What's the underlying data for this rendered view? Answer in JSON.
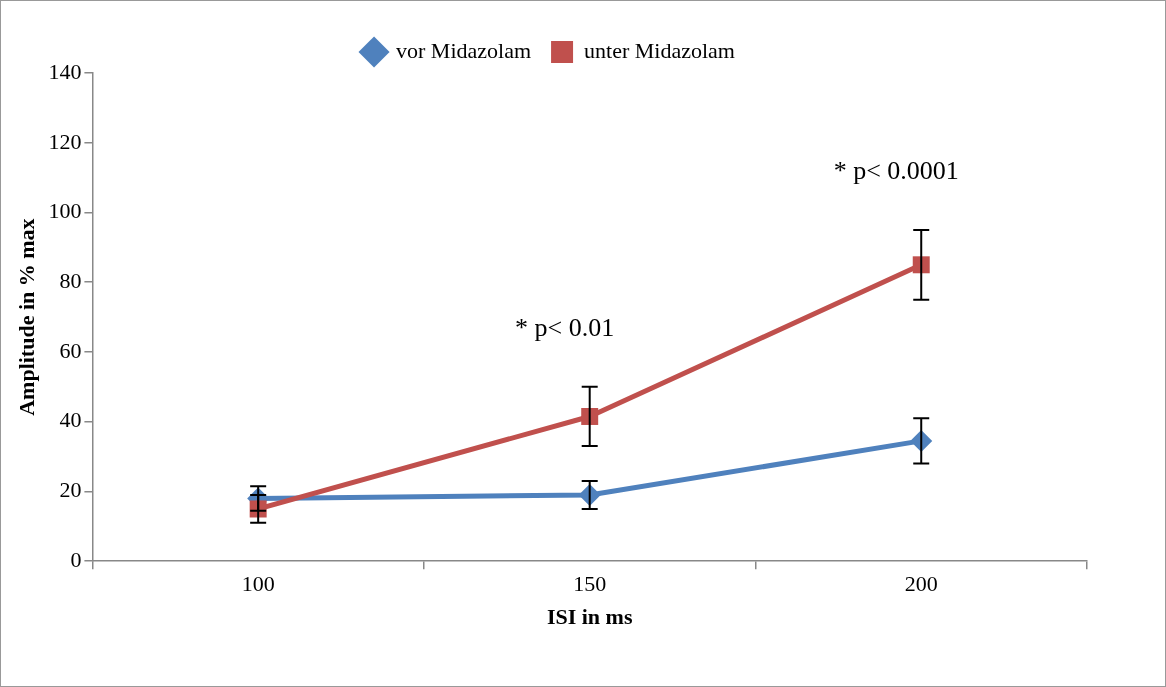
{
  "chart_data": {
    "type": "line",
    "xlabel": "ISI in ms",
    "ylabel": "Amplitude in % max",
    "categories": [
      "100",
      "150",
      "200"
    ],
    "series": [
      {
        "name": "vor Midazolam",
        "color": "#4f81bd",
        "marker": "diamond",
        "values": [
          18,
          19,
          34.5
        ],
        "errors": [
          3.5,
          4,
          6.5
        ]
      },
      {
        "name": "unter Midazolam",
        "color": "#c0504d",
        "marker": "square",
        "values": [
          15,
          41.5,
          85
        ],
        "errors": [
          4,
          8.5,
          10
        ]
      }
    ],
    "ylim": [
      0,
      140
    ],
    "yticks": [
      0,
      20,
      40,
      60,
      80,
      100,
      120,
      140
    ],
    "grid": false,
    "legend": "top",
    "annotations": [
      "* p< 0.01",
      "* p< 0.0001"
    ]
  }
}
